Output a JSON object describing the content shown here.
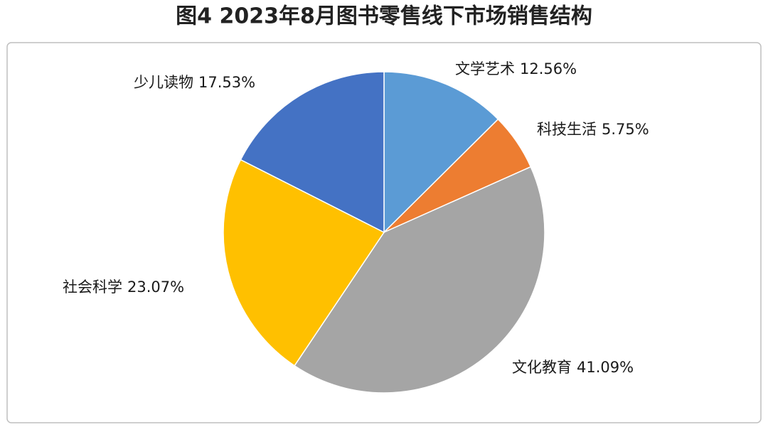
{
  "chart_data": {
    "type": "pie",
    "title": "图4 2023年8月图书零售线下市场销售结构",
    "categories": [
      "文学艺术",
      "科技生活",
      "文化教育",
      "社会科学",
      "少儿读物"
    ],
    "values": [
      12.56,
      5.75,
      41.09,
      23.07,
      17.53
    ],
    "value_labels": [
      "12.56%",
      "5.75%",
      "41.09%",
      "23.07%",
      "17.53%"
    ],
    "colors": [
      "#5b9bd5",
      "#ed7d31",
      "#a5a5a5",
      "#ffc000",
      "#4472c4"
    ]
  }
}
